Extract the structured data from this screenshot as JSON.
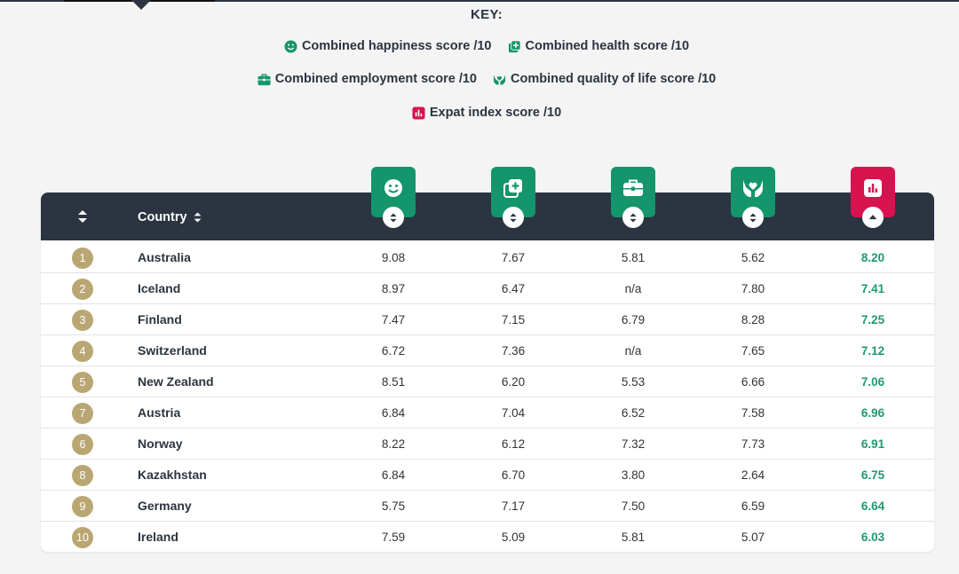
{
  "key": {
    "title": "KEY:",
    "items": [
      {
        "label": "Combined happiness score /10",
        "icon": "smiley-icon",
        "color": "#14956b"
      },
      {
        "label": "Combined health score /10",
        "icon": "medical-plus-icon",
        "color": "#14956b"
      },
      {
        "label": "Combined employment score /10",
        "icon": "briefcase-icon",
        "color": "#14956b"
      },
      {
        "label": "Combined quality of life score /10",
        "icon": "hands-heart-icon",
        "color": "#14956b"
      },
      {
        "label": "Expat index score /10",
        "icon": "bar-chart-icon",
        "color": "#d7134f"
      }
    ]
  },
  "table": {
    "header": {
      "country": "Country"
    },
    "rows": [
      {
        "rank": "1",
        "country": "Australia",
        "happiness": "9.08",
        "health": "7.67",
        "employment": "5.81",
        "quality": "5.62",
        "expat": "8.20"
      },
      {
        "rank": "2",
        "country": "Iceland",
        "happiness": "8.97",
        "health": "6.47",
        "employment": "n/a",
        "quality": "7.80",
        "expat": "7.41"
      },
      {
        "rank": "3",
        "country": "Finland",
        "happiness": "7.47",
        "health": "7.15",
        "employment": "6.79",
        "quality": "8.28",
        "expat": "7.25"
      },
      {
        "rank": "4",
        "country": "Switzerland",
        "happiness": "6.72",
        "health": "7.36",
        "employment": "n/a",
        "quality": "7.65",
        "expat": "7.12"
      },
      {
        "rank": "5",
        "country": "New Zealand",
        "happiness": "8.51",
        "health": "6.20",
        "employment": "5.53",
        "quality": "6.66",
        "expat": "7.06"
      },
      {
        "rank": "7",
        "country": "Austria",
        "happiness": "6.84",
        "health": "7.04",
        "employment": "6.52",
        "quality": "7.58",
        "expat": "6.96"
      },
      {
        "rank": "6",
        "country": "Norway",
        "happiness": "8.22",
        "health": "6.12",
        "employment": "7.32",
        "quality": "7.73",
        "expat": "6.91"
      },
      {
        "rank": "8",
        "country": "Kazakhstan",
        "happiness": "6.84",
        "health": "6.70",
        "employment": "3.80",
        "quality": "2.64",
        "expat": "6.75"
      },
      {
        "rank": "9",
        "country": "Germany",
        "happiness": "5.75",
        "health": "7.17",
        "employment": "7.50",
        "quality": "6.59",
        "expat": "6.64"
      },
      {
        "rank": "10",
        "country": "Ireland",
        "happiness": "7.59",
        "health": "5.09",
        "employment": "5.81",
        "quality": "5.07",
        "expat": "6.03"
      }
    ]
  },
  "colors": {
    "green": "#14956b",
    "red": "#d7134f",
    "header_bg": "#2b3440",
    "rank_badge": "#b9a673",
    "expat_text": "#1f9a6e"
  }
}
